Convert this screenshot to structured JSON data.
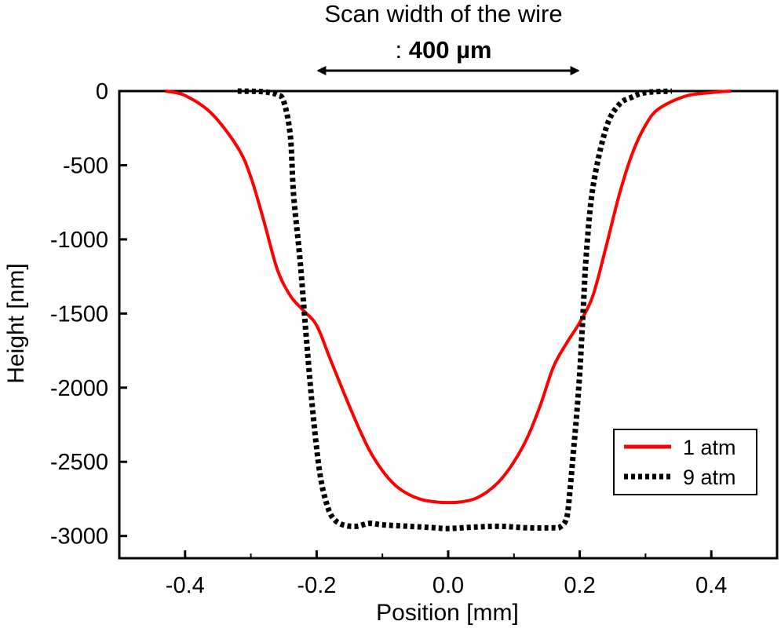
{
  "chart_data": {
    "type": "line",
    "title": "Scan width of the wire",
    "annotation": {
      "prefix": ": ",
      "value": "400 µm",
      "arrow_from_x": -0.2,
      "arrow_to_x": 0.2
    },
    "xlabel": "Position [mm]",
    "ylabel": "Height [nm]",
    "xlim": [
      -0.5,
      0.5
    ],
    "ylim": [
      -3150,
      0
    ],
    "xticks": [
      -0.4,
      -0.2,
      0.0,
      0.2,
      0.4
    ],
    "xtick_labels": [
      "-0.4",
      "-0.2",
      "0.0",
      "0.2",
      "0.4"
    ],
    "yticks": [
      0,
      -500,
      -1000,
      -1500,
      -2000,
      -2500,
      -3000
    ],
    "ytick_labels": [
      "0",
      "-500",
      "-1000",
      "-1500",
      "-2000",
      "-2500",
      "-3000"
    ],
    "grid": false,
    "legend_position": "bottom-right",
    "series": [
      {
        "name": "1 atm",
        "color": "#ff0000",
        "style": "solid",
        "x": [
          -0.43,
          -0.4,
          -0.36,
          -0.32,
          -0.3,
          -0.28,
          -0.26,
          -0.24,
          -0.22,
          -0.2,
          -0.18,
          -0.16,
          -0.14,
          -0.12,
          -0.1,
          -0.08,
          -0.06,
          -0.04,
          -0.02,
          0.0,
          0.02,
          0.04,
          0.06,
          0.08,
          0.1,
          0.12,
          0.14,
          0.16,
          0.18,
          0.2,
          0.22,
          0.24,
          0.26,
          0.28,
          0.3,
          0.32,
          0.36,
          0.4,
          0.43
        ],
        "y": [
          0,
          -30,
          -150,
          -380,
          -580,
          -880,
          -1200,
          -1380,
          -1480,
          -1580,
          -1800,
          -2020,
          -2230,
          -2420,
          -2560,
          -2660,
          -2720,
          -2755,
          -2770,
          -2775,
          -2770,
          -2750,
          -2700,
          -2620,
          -2500,
          -2340,
          -2120,
          -1860,
          -1700,
          -1560,
          -1380,
          -1050,
          -700,
          -420,
          -230,
          -120,
          -35,
          -10,
          0
        ]
      },
      {
        "name": "9 atm",
        "color": "#000000",
        "style": "dotted",
        "x": [
          -0.32,
          -0.28,
          -0.26,
          -0.25,
          -0.24,
          -0.235,
          -0.225,
          -0.215,
          -0.205,
          -0.195,
          -0.185,
          -0.175,
          -0.16,
          -0.14,
          -0.12,
          -0.1,
          -0.06,
          -0.02,
          0.0,
          0.04,
          0.08,
          0.12,
          0.16,
          0.17,
          0.18,
          0.185,
          0.19,
          0.195,
          0.2,
          0.205,
          0.21,
          0.22,
          0.24,
          0.26,
          0.28,
          0.3,
          0.34
        ],
        "y": [
          0,
          -5,
          -25,
          -70,
          -300,
          -700,
          -1150,
          -1700,
          -2200,
          -2580,
          -2780,
          -2880,
          -2925,
          -2935,
          -2915,
          -2925,
          -2935,
          -2945,
          -2950,
          -2940,
          -2935,
          -2945,
          -2945,
          -2940,
          -2880,
          -2700,
          -2450,
          -2200,
          -1900,
          -1500,
          -1100,
          -650,
          -250,
          -90,
          -40,
          -10,
          0
        ]
      }
    ]
  }
}
